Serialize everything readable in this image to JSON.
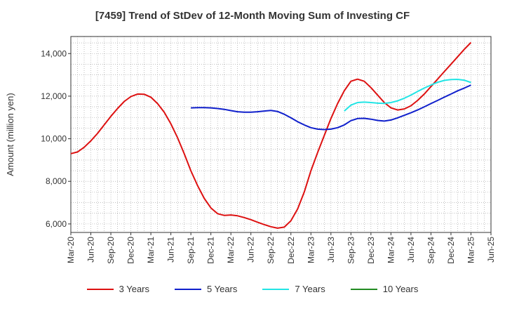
{
  "chart_data": {
    "type": "line",
    "title": "[7459]  Trend of StDev of 12-Month Moving Sum of Investing CF",
    "xlabel": "",
    "ylabel": "Amount (million yen)",
    "ylim": [
      5600,
      14800
    ],
    "yticks": [
      6000,
      8000,
      10000,
      12000,
      14000
    ],
    "ytick_labels": [
      "6,000",
      "8,000",
      "10,000",
      "12,000",
      "14,000"
    ],
    "xtick_labels": [
      "Mar-20",
      "Jun-20",
      "Sep-20",
      "Dec-20",
      "Mar-21",
      "Jun-21",
      "Sep-21",
      "Dec-21",
      "Mar-22",
      "Jun-22",
      "Sep-22",
      "Dec-22",
      "Mar-23",
      "Jun-23",
      "Sep-23",
      "Dec-23",
      "Mar-24",
      "Jun-24",
      "Sep-24",
      "Dec-24",
      "Mar-25",
      "Jun-25"
    ],
    "grid": true,
    "legend_position": "bottom",
    "series": [
      {
        "name": "3 Years",
        "color": "#dd1111",
        "x": [
          "Mar-20",
          "Apr-20",
          "May-20",
          "Jun-20",
          "Jul-20",
          "Aug-20",
          "Sep-20",
          "Oct-20",
          "Nov-20",
          "Dec-20",
          "Jan-21",
          "Feb-21",
          "Mar-21",
          "Apr-21",
          "May-21",
          "Jun-21",
          "Jul-21",
          "Aug-21",
          "Sep-21",
          "Oct-21",
          "Nov-21",
          "Dec-21",
          "Jan-22",
          "Feb-22",
          "Mar-22",
          "Apr-22",
          "May-22",
          "Jun-22",
          "Jul-22",
          "Aug-22",
          "Sep-22",
          "Oct-22",
          "Nov-22",
          "Dec-22",
          "Jan-23",
          "Feb-23",
          "Mar-23",
          "Apr-23",
          "May-23",
          "Jun-23",
          "Jul-23",
          "Aug-23",
          "Sep-23",
          "Oct-23",
          "Nov-23",
          "Dec-23",
          "Jan-24",
          "Feb-24",
          "Mar-24",
          "Apr-24",
          "May-24",
          "Jun-24",
          "Jul-24",
          "Aug-24",
          "Sep-24",
          "Oct-24",
          "Nov-24",
          "Dec-24",
          "Jan-25",
          "Feb-25",
          "Mar-25"
        ],
        "values": [
          9300,
          9380,
          9600,
          9900,
          10250,
          10650,
          11050,
          11420,
          11750,
          11980,
          12100,
          12090,
          11950,
          11650,
          11250,
          10700,
          10050,
          9300,
          8500,
          7800,
          7200,
          6750,
          6480,
          6400,
          6420,
          6380,
          6300,
          6200,
          6080,
          5970,
          5870,
          5800,
          5850,
          6150,
          6700,
          7500,
          8500,
          9350,
          10150,
          10950,
          11650,
          12250,
          12700,
          12800,
          12700,
          12400,
          12050,
          11700,
          11450,
          11350,
          11400,
          11550,
          11800,
          12100,
          12450,
          12800,
          13150,
          13500,
          13850,
          14200,
          14520
        ]
      },
      {
        "name": "5 Years",
        "color": "#1020cc",
        "x": [
          "Sep-21",
          "Oct-21",
          "Nov-21",
          "Dec-21",
          "Jan-22",
          "Feb-22",
          "Mar-22",
          "Apr-22",
          "May-22",
          "Jun-22",
          "Jul-22",
          "Aug-22",
          "Sep-22",
          "Oct-22",
          "Nov-22",
          "Dec-22",
          "Jan-23",
          "Feb-23",
          "Mar-23",
          "Apr-23",
          "May-23",
          "Jun-23",
          "Jul-23",
          "Aug-23",
          "Sep-23",
          "Oct-23",
          "Nov-23",
          "Dec-23",
          "Jan-24",
          "Feb-24",
          "Mar-24",
          "Apr-24",
          "May-24",
          "Jun-24",
          "Jul-24",
          "Aug-24",
          "Sep-24",
          "Oct-24",
          "Nov-24",
          "Dec-24",
          "Jan-25",
          "Feb-25",
          "Mar-25"
        ],
        "values": [
          11450,
          11460,
          11460,
          11450,
          11420,
          11380,
          11320,
          11270,
          11250,
          11250,
          11270,
          11300,
          11330,
          11280,
          11150,
          10980,
          10800,
          10650,
          10520,
          10450,
          10430,
          10450,
          10520,
          10650,
          10850,
          10950,
          10960,
          10920,
          10860,
          10830,
          10880,
          10980,
          11100,
          11220,
          11350,
          11500,
          11650,
          11800,
          11950,
          12100,
          12250,
          12380,
          12520
        ]
      },
      {
        "name": "7 Years",
        "color": "#22e5e5",
        "x": [
          "Aug-23",
          "Sep-23",
          "Oct-23",
          "Nov-23",
          "Dec-23",
          "Jan-24",
          "Feb-24",
          "Mar-24",
          "Apr-24",
          "May-24",
          "Jun-24",
          "Jul-24",
          "Aug-24",
          "Sep-24",
          "Oct-24",
          "Nov-24",
          "Dec-24",
          "Jan-25",
          "Feb-25",
          "Mar-25"
        ],
        "values": [
          11300,
          11580,
          11700,
          11720,
          11700,
          11670,
          11660,
          11700,
          11780,
          11900,
          12050,
          12220,
          12380,
          12520,
          12650,
          12740,
          12780,
          12790,
          12750,
          12640
        ]
      },
      {
        "name": "10 Years",
        "color": "#228b22",
        "x": [],
        "values": []
      }
    ]
  }
}
